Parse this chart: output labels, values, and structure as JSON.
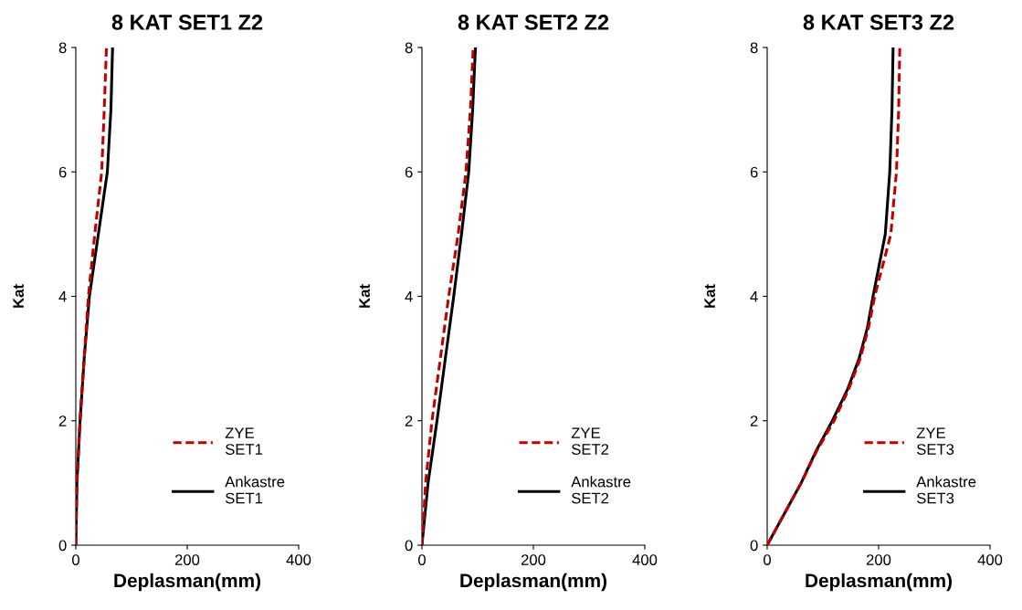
{
  "chart_data": [
    {
      "type": "line",
      "title": "8 KAT SET1 Z2",
      "xlabel": "Deplasman(mm)",
      "ylabel": "Kat",
      "xlim": [
        0,
        400
      ],
      "xticks": [
        0,
        200,
        400
      ],
      "ylim": [
        0,
        8
      ],
      "yticks": [
        0,
        2,
        4,
        6,
        8
      ],
      "grid": false,
      "legend": "bottom right",
      "marker": "none",
      "series": [
        {
          "name": "ZYE\nSET1",
          "color": "#c00000",
          "line_style": "dashed",
          "x": [
            0,
            2,
            7.5,
            15,
            22.6,
            34,
            46.5,
            51,
            55
          ],
          "values": [
            0,
            1,
            2,
            3,
            4,
            5,
            6,
            7,
            8
          ]
        },
        {
          "name": "Ankastre\nSET1",
          "color": "#000000",
          "line_style": "solid",
          "x": [
            0,
            2,
            7.7,
            15,
            24.4,
            40.5,
            56.6,
            63,
            66
          ],
          "values": [
            0,
            1,
            2,
            3,
            4,
            5,
            6,
            7,
            8
          ]
        }
      ]
    },
    {
      "type": "line",
      "title": "8 KAT SET2 Z2",
      "xlabel": "Deplasman(mm)",
      "ylabel": "Kat",
      "xlim": [
        0,
        400
      ],
      "xticks": [
        0,
        200,
        400
      ],
      "ylim": [
        0,
        8
      ],
      "yticks": [
        0,
        2,
        4,
        6,
        8
      ],
      "grid": false,
      "legend": "bottom right",
      "marker": "none",
      "series": [
        {
          "name": "ZYE\nSET2",
          "color": "#c00000",
          "line_style": "dashed",
          "x": [
            0,
            6.6,
            18,
            33,
            48,
            65,
            79,
            87,
            92
          ],
          "values": [
            0,
            1,
            2,
            3,
            4,
            5,
            6,
            7,
            8
          ]
        },
        {
          "name": "Ankastre\nSET2",
          "color": "#000000",
          "line_style": "solid",
          "x": [
            0,
            11,
            27,
            42,
            57,
            71,
            84,
            91,
            96
          ],
          "values": [
            0,
            1,
            2,
            3,
            4,
            5,
            6,
            7,
            8
          ]
        }
      ]
    },
    {
      "type": "line",
      "title": "8 KAT SET3 Z2",
      "xlabel": "Deplasman(mm)",
      "ylabel": "Kat",
      "xlim": [
        0,
        400
      ],
      "xticks": [
        0,
        200,
        400
      ],
      "ylim": [
        0,
        8
      ],
      "yticks": [
        0,
        2,
        4,
        6,
        8
      ],
      "grid": false,
      "legend": "bottom right",
      "marker": "none",
      "series": [
        {
          "name": "ZYE\nSET3",
          "color": "#c00000",
          "line_style": "dashed",
          "x": [
            0,
            61,
            88,
            120,
            146,
            167,
            182,
            193,
            222,
            232,
            236,
            238
          ],
          "values": [
            0,
            1,
            1.5,
            2,
            2.5,
            3,
            3.5,
            4,
            5,
            6,
            7,
            8
          ]
        },
        {
          "name": "Ankastre\nSET3",
          "color": "#000000",
          "line_style": "solid",
          "x": [
            0,
            61,
            87,
            117,
            144,
            165,
            180,
            190,
            212,
            220,
            224,
            226
          ],
          "values": [
            0,
            1,
            1.5,
            2,
            2.5,
            3,
            3.5,
            4,
            5,
            6,
            7,
            8
          ]
        }
      ]
    }
  ]
}
